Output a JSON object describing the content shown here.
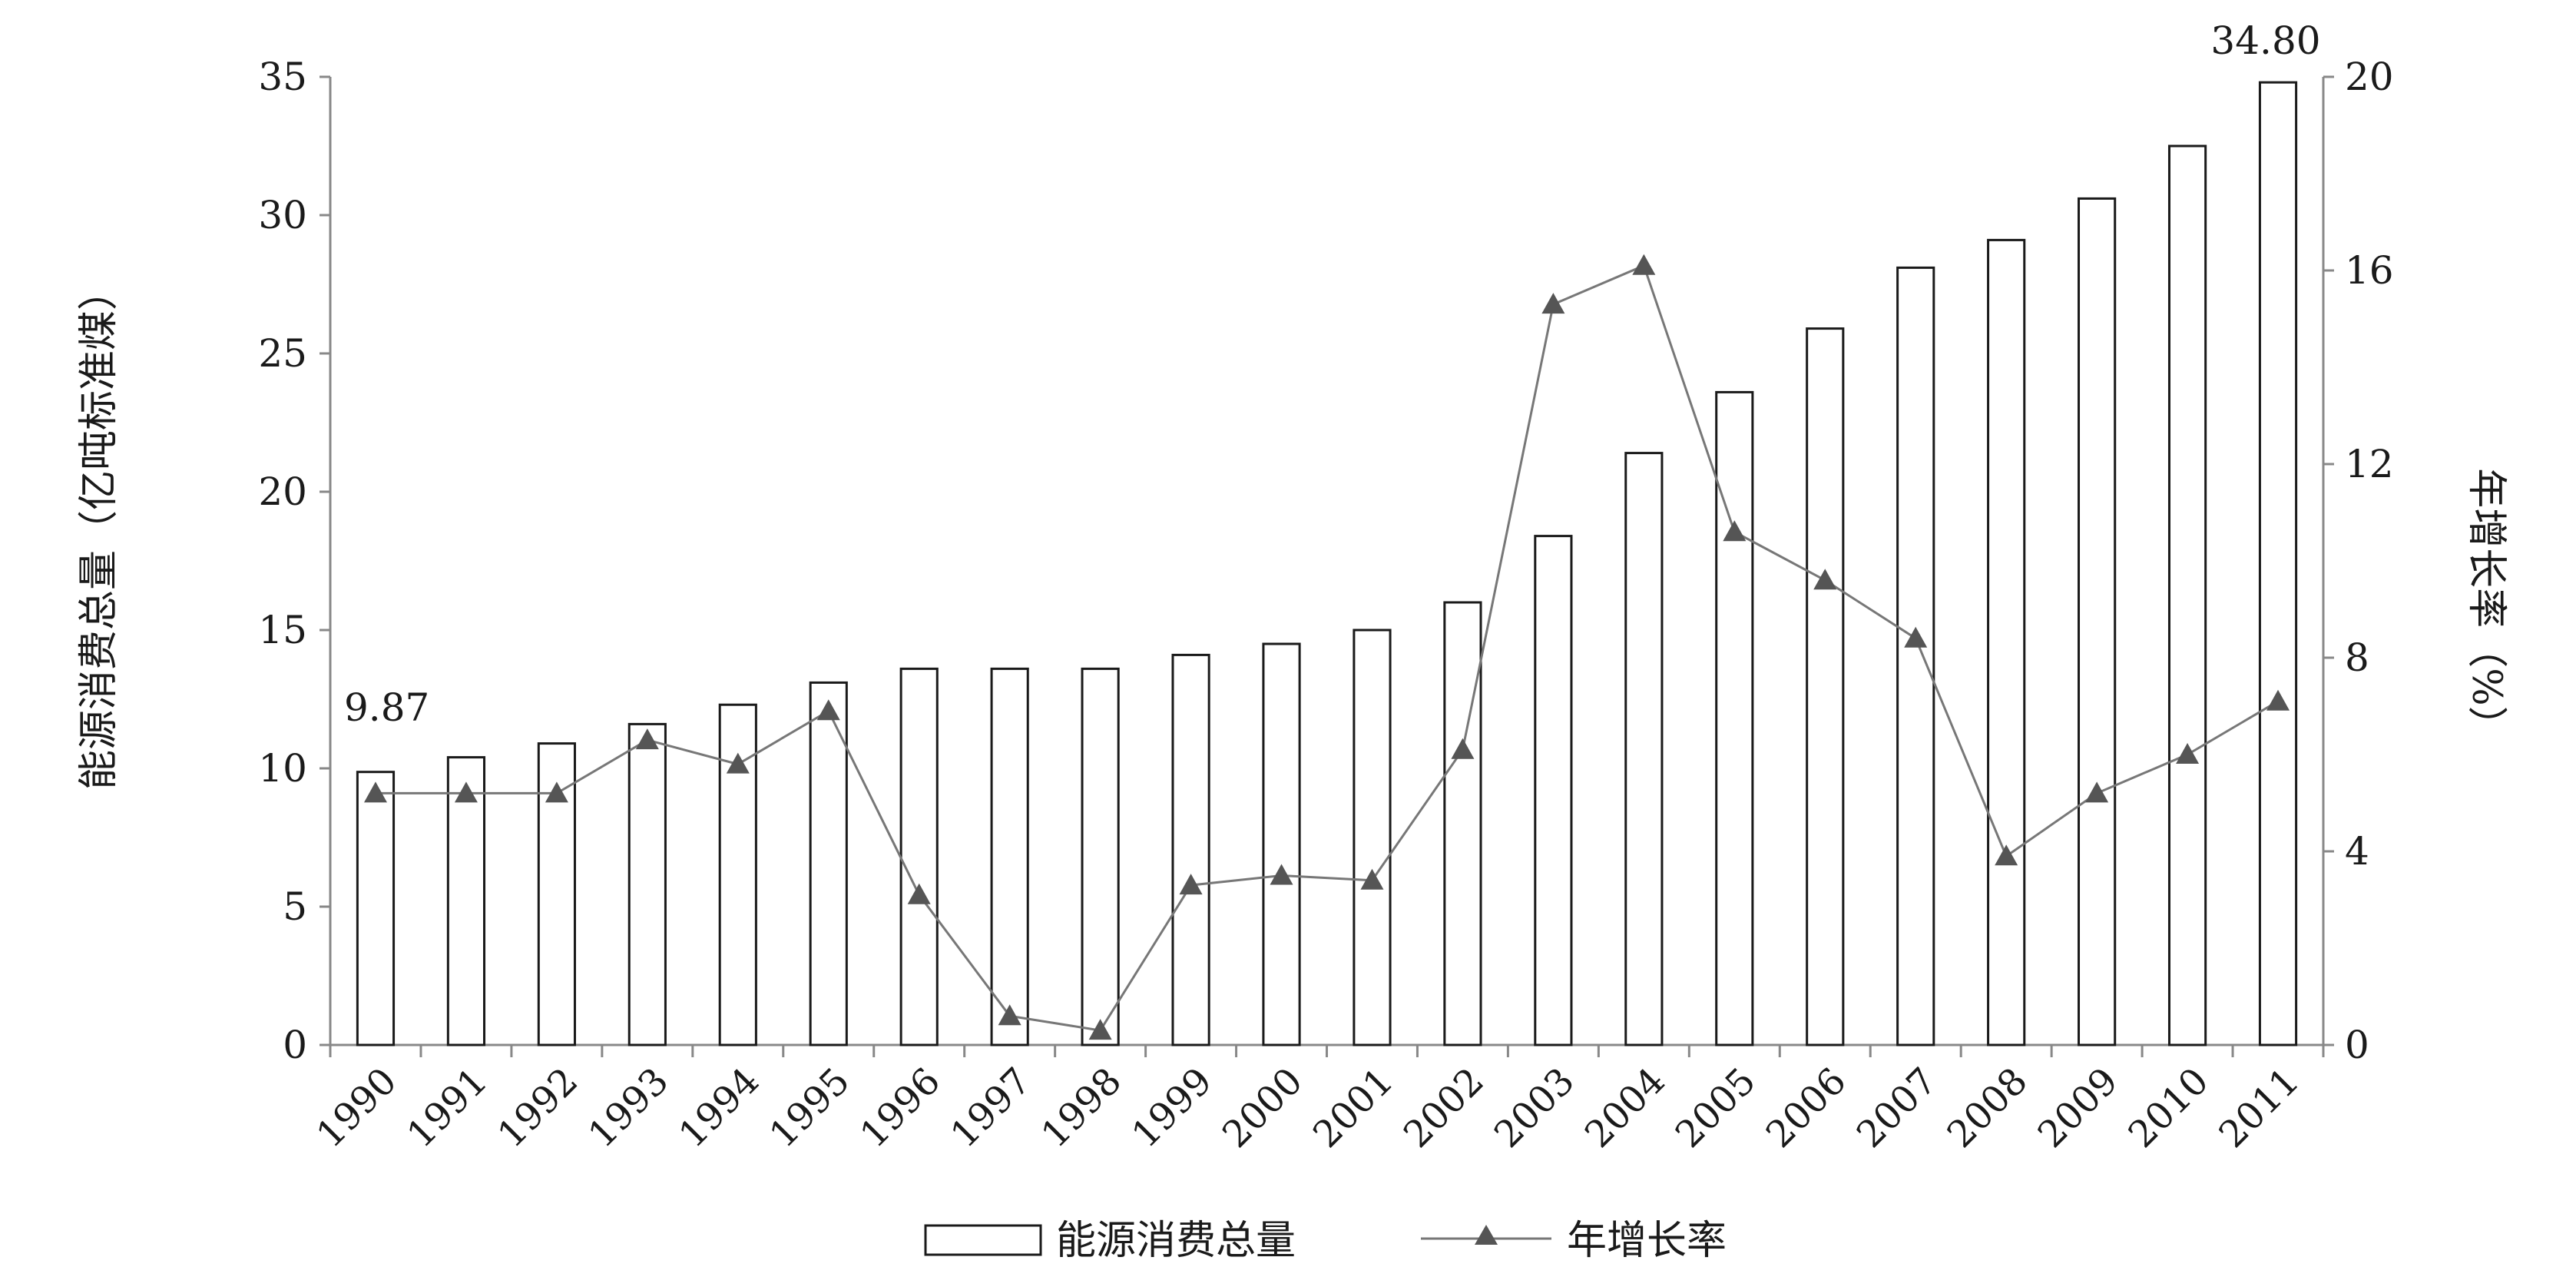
{
  "chart_data": {
    "type": "bar+line",
    "categories": [
      "1990",
      "1991",
      "1992",
      "1993",
      "1994",
      "1995",
      "1996",
      "1997",
      "1998",
      "1999",
      "2000",
      "2001",
      "2002",
      "2003",
      "2004",
      "2005",
      "2006",
      "2007",
      "2008",
      "2009",
      "2010",
      "2011"
    ],
    "series": [
      {
        "name": "能源消费总量",
        "type": "bar",
        "axis": "left",
        "values": [
          9.87,
          10.4,
          10.9,
          11.6,
          12.3,
          13.1,
          13.6,
          13.6,
          13.6,
          14.1,
          14.5,
          15.0,
          16.0,
          18.4,
          21.4,
          23.6,
          25.9,
          28.1,
          29.1,
          30.6,
          32.5,
          34.8
        ]
      },
      {
        "name": "年增长率",
        "type": "line",
        "axis": "right",
        "marker": "triangle",
        "values": [
          5.2,
          5.2,
          5.2,
          6.3,
          5.8,
          6.9,
          3.1,
          0.6,
          0.3,
          3.3,
          3.5,
          3.4,
          6.1,
          15.3,
          16.1,
          10.6,
          9.6,
          8.4,
          3.9,
          5.2,
          6.0,
          7.1
        ]
      }
    ],
    "ylabel": "能源消费总量（亿吨标准煤）",
    "ylabel_right": "年增长率（%）",
    "ylim": [
      0,
      35
    ],
    "yticks": [
      0,
      5,
      10,
      15,
      20,
      25,
      30,
      35
    ],
    "ylim_right": [
      0,
      20
    ],
    "yticks_right": [
      0,
      4,
      8,
      12,
      16,
      20
    ],
    "annotations": [
      {
        "category": "1990",
        "text": "9.87"
      },
      {
        "category": "2011",
        "text": "34.80"
      }
    ],
    "grid": false,
    "legend": "bottom",
    "colors": {
      "bar_fill": "#ffffff",
      "bar_stroke": "#1a1a1a",
      "line": "#777777",
      "marker": "#555555",
      "axis": "#888888"
    }
  }
}
